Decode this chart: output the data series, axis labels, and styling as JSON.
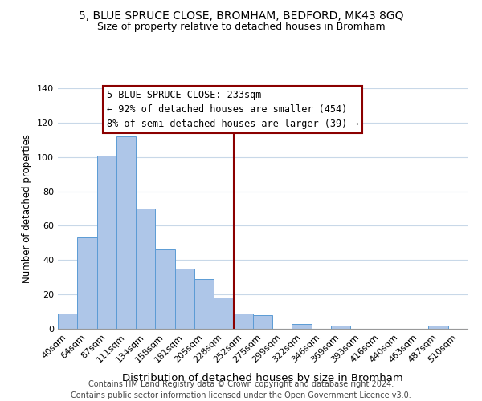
{
  "title1": "5, BLUE SPRUCE CLOSE, BROMHAM, BEDFORD, MK43 8GQ",
  "title2": "Size of property relative to detached houses in Bromham",
  "xlabel": "Distribution of detached houses by size in Bromham",
  "ylabel": "Number of detached properties",
  "bar_labels": [
    "40sqm",
    "64sqm",
    "87sqm",
    "111sqm",
    "134sqm",
    "158sqm",
    "181sqm",
    "205sqm",
    "228sqm",
    "252sqm",
    "275sqm",
    "299sqm",
    "322sqm",
    "346sqm",
    "369sqm",
    "393sqm",
    "416sqm",
    "440sqm",
    "463sqm",
    "487sqm",
    "510sqm"
  ],
  "bar_values": [
    9,
    53,
    101,
    112,
    70,
    46,
    35,
    29,
    18,
    9,
    8,
    0,
    3,
    0,
    2,
    0,
    0,
    0,
    0,
    2,
    0
  ],
  "bar_color": "#aec6e8",
  "bar_edge_color": "#5b9bd5",
  "property_line_x": 8.5,
  "property_line_label": "5 BLUE SPRUCE CLOSE: 233sqm",
  "annotation_line1": "← 92% of detached houses are smaller (454)",
  "annotation_line2": "8% of semi-detached houses are larger (39) →",
  "vline_color": "#8b0000",
  "annotation_box_edge": "#8b0000",
  "footer1": "Contains HM Land Registry data © Crown copyright and database right 2024.",
  "footer2": "Contains public sector information licensed under the Open Government Licence v3.0.",
  "ylim": [
    0,
    140
  ],
  "title1_fontsize": 10,
  "title2_fontsize": 9,
  "xlabel_fontsize": 9.5,
  "ylabel_fontsize": 8.5,
  "tick_fontsize": 8,
  "footer_fontsize": 7,
  "annotation_fontsize": 8.5
}
